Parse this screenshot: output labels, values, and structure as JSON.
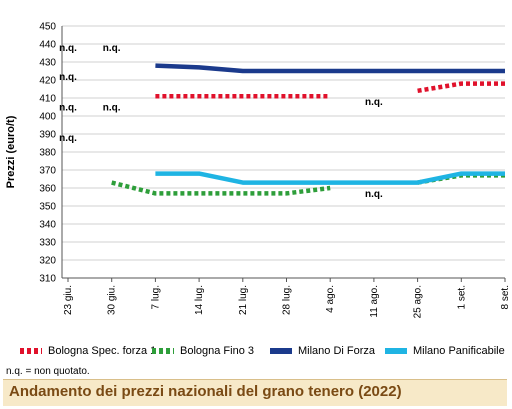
{
  "chart_data": {
    "type": "line",
    "title": "Andamento dei prezzi nazionali del grano tenero (2022)",
    "ylabel": "Prezzi (euro/t)",
    "xlabel": "",
    "ylim": [
      310,
      450
    ],
    "ytick_step": 10,
    "categories": [
      "23 giu.",
      "30 giu.",
      "7 lug.",
      "14 lug.",
      "21 lug.",
      "28 lug.",
      "4 ago.",
      "11 ago.",
      "25 ago.",
      "1 set.",
      "8 set."
    ],
    "grid": "horizontal",
    "legend_position": "bottom",
    "series": [
      {
        "name": "Bologna Spec. forza 1",
        "color": "#e0112b",
        "style": "dotted",
        "values": [
          null,
          null,
          411,
          411,
          411,
          411,
          411,
          null,
          414,
          418,
          418
        ]
      },
      {
        "name": "Bologna Fino 3",
        "color": "#2e9e3a",
        "style": "dotted",
        "values": [
          null,
          363,
          357,
          357,
          357,
          357,
          360,
          null,
          363,
          367,
          367
        ]
      },
      {
        "name": "Milano Di Forza",
        "color": "#1b3a8c",
        "style": "solid",
        "values": [
          null,
          null,
          428,
          427,
          425,
          425,
          425,
          425,
          425,
          425,
          425
        ]
      },
      {
        "name": "Milano Panificabile",
        "color": "#1fb4e3",
        "style": "solid",
        "values": [
          null,
          null,
          368,
          368,
          363,
          363,
          363,
          363,
          363,
          368,
          368
        ]
      }
    ],
    "annotations": [
      {
        "text": "n.q.",
        "x": "23 giu.",
        "y": 438
      },
      {
        "text": "n.q.",
        "x": "30 giu.",
        "y": 438
      },
      {
        "text": "n.q.",
        "x": "23 giu.",
        "y": 422
      },
      {
        "text": "n.q.",
        "x": "23 giu.",
        "y": 405
      },
      {
        "text": "n.q.",
        "x": "30 giu.",
        "y": 405
      },
      {
        "text": "n.q.",
        "x": "23 giu.",
        "y": 388
      },
      {
        "text": "n.q.",
        "x": "11 ago.",
        "y": 408
      },
      {
        "text": "n.q.",
        "x": "11 ago.",
        "y": 357
      }
    ]
  },
  "note": "n.q. = non quotato."
}
